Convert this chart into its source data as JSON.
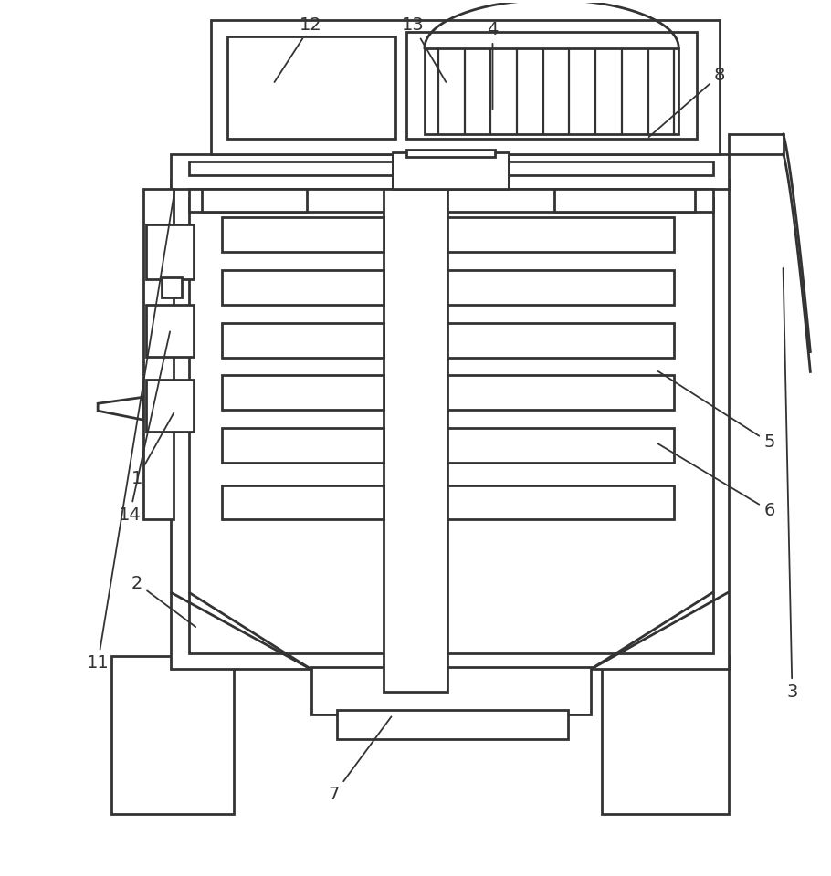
{
  "bg_color": "#ffffff",
  "line_color": "#333333",
  "lw": 2.0,
  "fig_width": 9.1,
  "fig_height": 9.6
}
